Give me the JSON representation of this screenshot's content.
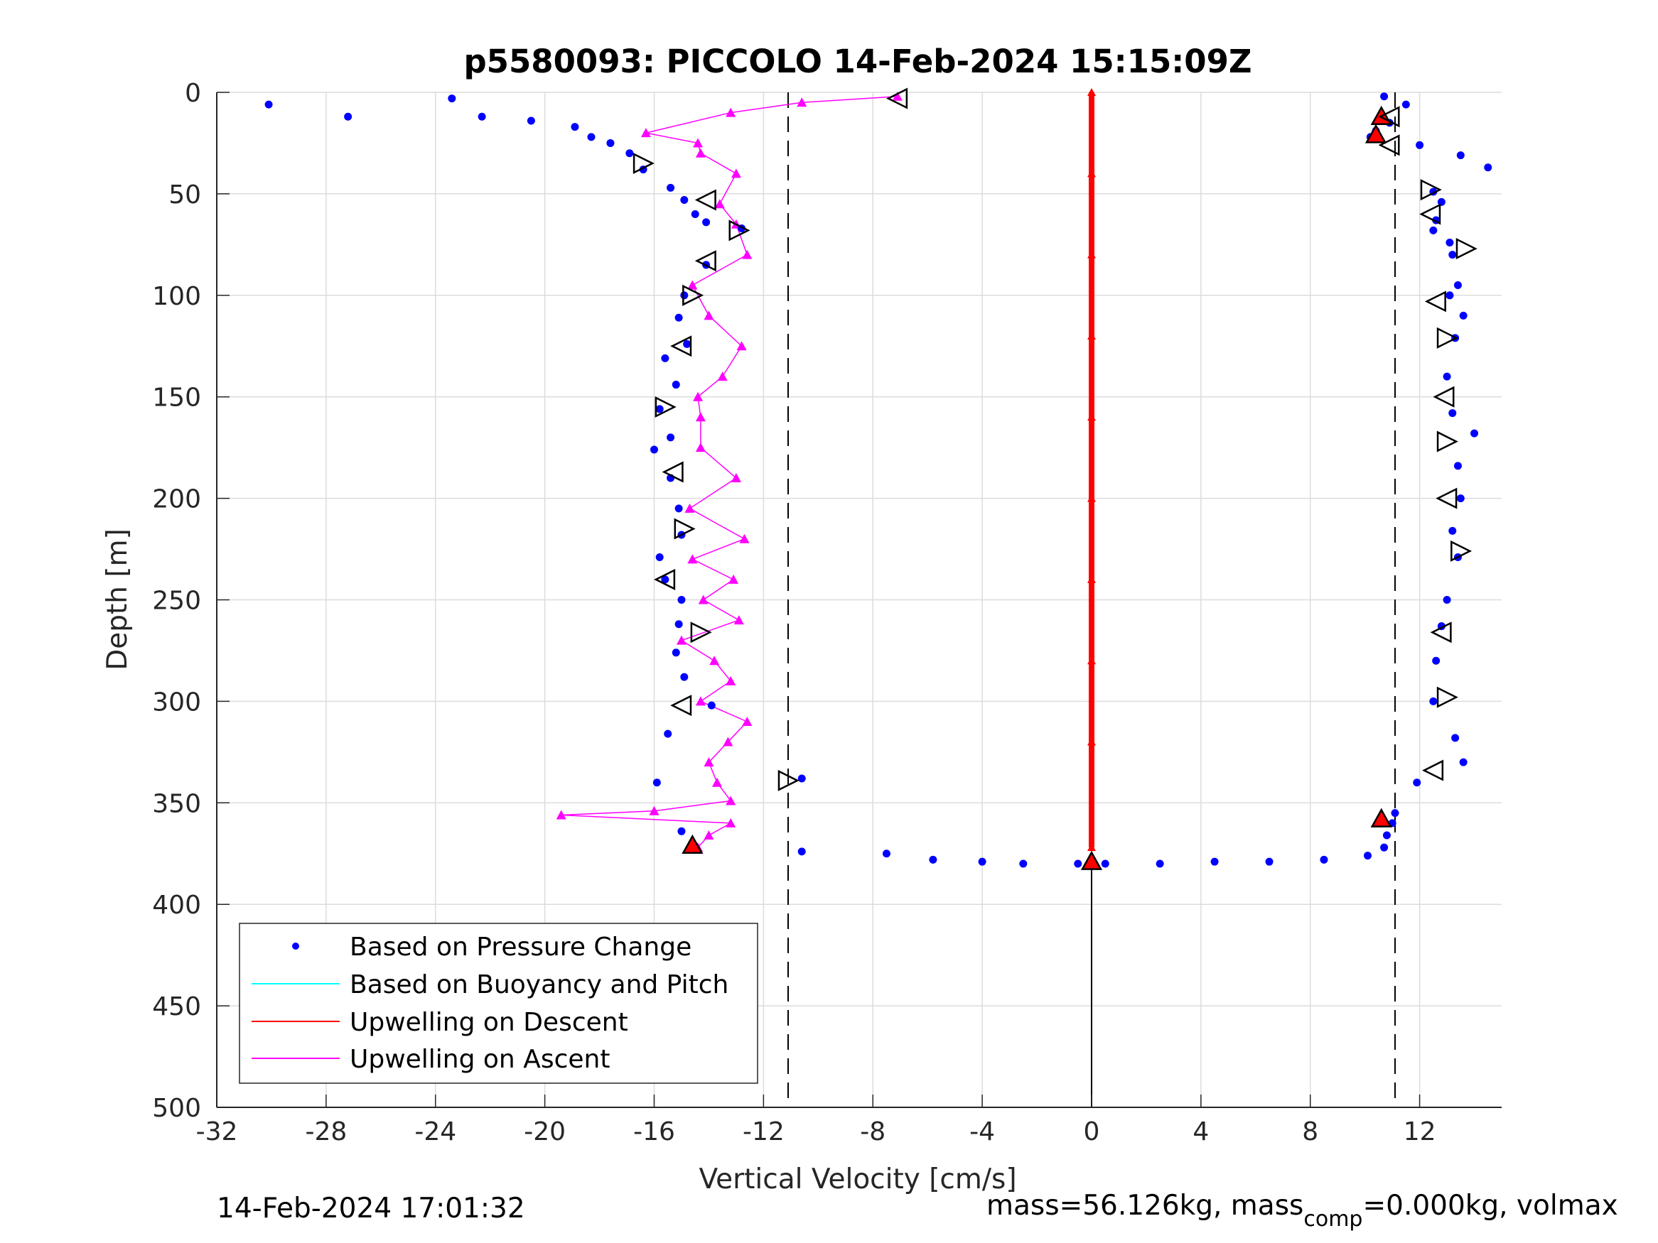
{
  "chart_data": {
    "type": "scatter",
    "title": "p5580093: PICCOLO 14-Feb-2024 15:15:09Z",
    "xlabel": "Vertical Velocity [cm/s]",
    "ylabel": "Depth [m]",
    "xlim": [
      -32,
      15
    ],
    "ylim": [
      0,
      500
    ],
    "y_reversed": true,
    "grid": true,
    "legend_position": "bottom-left",
    "x_ticks": [
      "-32",
      "-28",
      "-24",
      "-20",
      "-16",
      "-12",
      "-8",
      "-4",
      "0",
      "4",
      "8",
      "12"
    ],
    "y_ticks": [
      "0",
      "50",
      "100",
      "150",
      "200",
      "250",
      "300",
      "350",
      "400",
      "450",
      "500"
    ],
    "reference_lines": [
      {
        "x": -11.1,
        "style": "dashed"
      },
      {
        "x": 11.1,
        "style": "dashed"
      },
      {
        "x": 0,
        "y_range": [
          380,
          500
        ],
        "style": "solid"
      }
    ],
    "legend": [
      "Based on Pressure Change",
      "Based on Buoyancy and Pitch",
      "Upwelling on Descent",
      "Upwelling on Ascent"
    ],
    "colors": {
      "pressure": "#0000ff",
      "buoyancy": "#00ffff",
      "upwelling_descent": "#ff0000",
      "upwelling_ascent": "#ff00ff"
    },
    "series": [
      {
        "name": "Based on Pressure Change",
        "x": [
          -30.1,
          -27.2,
          -23.4,
          -22.3,
          -20.5,
          -18.9,
          -18.3,
          -17.6,
          -16.9,
          -16.4,
          -15.4,
          -14.9,
          -14.5,
          -14.1,
          -12.8,
          -14.1,
          -14.9,
          -15.1,
          -14.8,
          -15.6,
          -15.2,
          -15.8,
          -15.4,
          -16.0,
          -15.4,
          -15.1,
          -15.0,
          -15.8,
          -15.6,
          -15.0,
          -15.1,
          -15.2,
          -14.9,
          -13.9,
          -15.5,
          -15.9,
          -15.0,
          -10.6,
          -10.6,
          -7.5,
          -5.8,
          -4.0,
          -2.5,
          -0.5,
          0.5,
          2.5,
          4.5,
          6.5,
          8.5,
          10.1,
          10.7,
          10.8,
          11.0,
          11.1,
          10.7,
          12.5,
          12.8,
          12.6,
          12.5,
          13.1,
          13.2,
          13.4,
          13.1,
          13.6,
          13.3,
          13.0,
          13.2,
          14.0,
          13.4,
          13.5,
          13.2,
          13.4,
          13.0,
          12.8,
          12.6,
          12.5,
          13.3,
          13.6,
          11.9,
          11.5,
          10.9,
          10.4,
          10.2,
          12.0,
          13.5,
          14.5,
          12.8
        ],
        "y": [
          6,
          12,
          3,
          12,
          14,
          17,
          22,
          25,
          30,
          38,
          47,
          53,
          60,
          64,
          67,
          85,
          100,
          111,
          124,
          131,
          144,
          156,
          170,
          176,
          190,
          205,
          218,
          229,
          240,
          250,
          262,
          276,
          288,
          302,
          316,
          340,
          364,
          338,
          374,
          375,
          378,
          379,
          380,
          380,
          380,
          380,
          379,
          379,
          378,
          376,
          372,
          366,
          360,
          355,
          2,
          49,
          54,
          63,
          68,
          74,
          80,
          95,
          100,
          110,
          121,
          140,
          158,
          168,
          184,
          200,
          216,
          229,
          250,
          263,
          280,
          300,
          318,
          330,
          340,
          6,
          15,
          19,
          22,
          26,
          31,
          37,
          263
        ]
      },
      {
        "name": "Based on Buoyancy and Pitch",
        "x": [],
        "y": []
      },
      {
        "name": "Upwelling on Descent",
        "x": [
          0,
          0,
          0,
          0,
          0,
          0,
          0,
          0,
          0,
          0
        ],
        "y": [
          0,
          40,
          80,
          120,
          160,
          200,
          240,
          280,
          320,
          372
        ]
      },
      {
        "name": "Upwelling on Ascent",
        "x": [
          -14.4,
          -14.0,
          -13.2,
          -19.4,
          -16.0,
          -13.2,
          -13.7,
          -14.0,
          -13.3,
          -12.6,
          -14.3,
          -13.2,
          -13.8,
          -15.0,
          -12.9,
          -14.2,
          -13.1,
          -14.6,
          -12.7,
          -14.7,
          -13.0,
          -14.3,
          -14.3,
          -14.4,
          -13.5,
          -12.8,
          -14.0,
          -14.6,
          -12.6,
          -13.0,
          -13.6,
          -13.0,
          -14.3,
          -14.4,
          -16.3,
          -13.2,
          -10.6,
          -7.1
        ],
        "y": [
          372,
          366,
          360,
          356,
          354,
          349,
          340,
          330,
          320,
          310,
          300,
          290,
          280,
          270,
          260,
          250,
          240,
          230,
          220,
          205,
          190,
          175,
          160,
          150,
          140,
          125,
          110,
          95,
          80,
          65,
          55,
          40,
          30,
          25,
          20,
          10,
          5,
          2
        ]
      }
    ],
    "markers": {
      "up_triangles": [
        {
          "x": 10.6,
          "y": 12
        },
        {
          "x": 10.4,
          "y": 21
        },
        {
          "x": 10.6,
          "y": 358
        },
        {
          "x": -14.6,
          "y": 371
        },
        {
          "x": 0.0,
          "y": 379
        }
      ],
      "left_triangles": [
        {
          "x": -7.1,
          "y": 3
        },
        {
          "x": -14.1,
          "y": 53
        },
        {
          "x": -14.1,
          "y": 83
        },
        {
          "x": -15.0,
          "y": 125
        },
        {
          "x": -15.3,
          "y": 187
        },
        {
          "x": -15.6,
          "y": 240
        },
        {
          "x": -15.0,
          "y": 302
        },
        {
          "x": 10.9,
          "y": 12
        },
        {
          "x": 10.9,
          "y": 26
        },
        {
          "x": 12.4,
          "y": 60
        },
        {
          "x": 12.6,
          "y": 103
        },
        {
          "x": 12.9,
          "y": 150
        },
        {
          "x": 13.0,
          "y": 200
        },
        {
          "x": 12.8,
          "y": 266
        },
        {
          "x": 12.5,
          "y": 334
        }
      ],
      "right_triangles": [
        {
          "x": -16.4,
          "y": 35
        },
        {
          "x": -12.9,
          "y": 68
        },
        {
          "x": -14.6,
          "y": 100
        },
        {
          "x": -15.6,
          "y": 155
        },
        {
          "x": -14.9,
          "y": 215
        },
        {
          "x": -14.3,
          "y": 266
        },
        {
          "x": -11.1,
          "y": 339
        },
        {
          "x": 12.4,
          "y": 48
        },
        {
          "x": 13.7,
          "y": 77
        },
        {
          "x": 13.0,
          "y": 121
        },
        {
          "x": 13.0,
          "y": 172
        },
        {
          "x": 13.5,
          "y": 226
        },
        {
          "x": 13.0,
          "y": 298
        }
      ]
    }
  },
  "footer": {
    "timestamp": "14-Feb-2024 17:01:32",
    "mass_prefix": "mass=56.126kg, mass",
    "mass_sub": "comp",
    "mass_suffix": "=0.000kg, volmax"
  }
}
